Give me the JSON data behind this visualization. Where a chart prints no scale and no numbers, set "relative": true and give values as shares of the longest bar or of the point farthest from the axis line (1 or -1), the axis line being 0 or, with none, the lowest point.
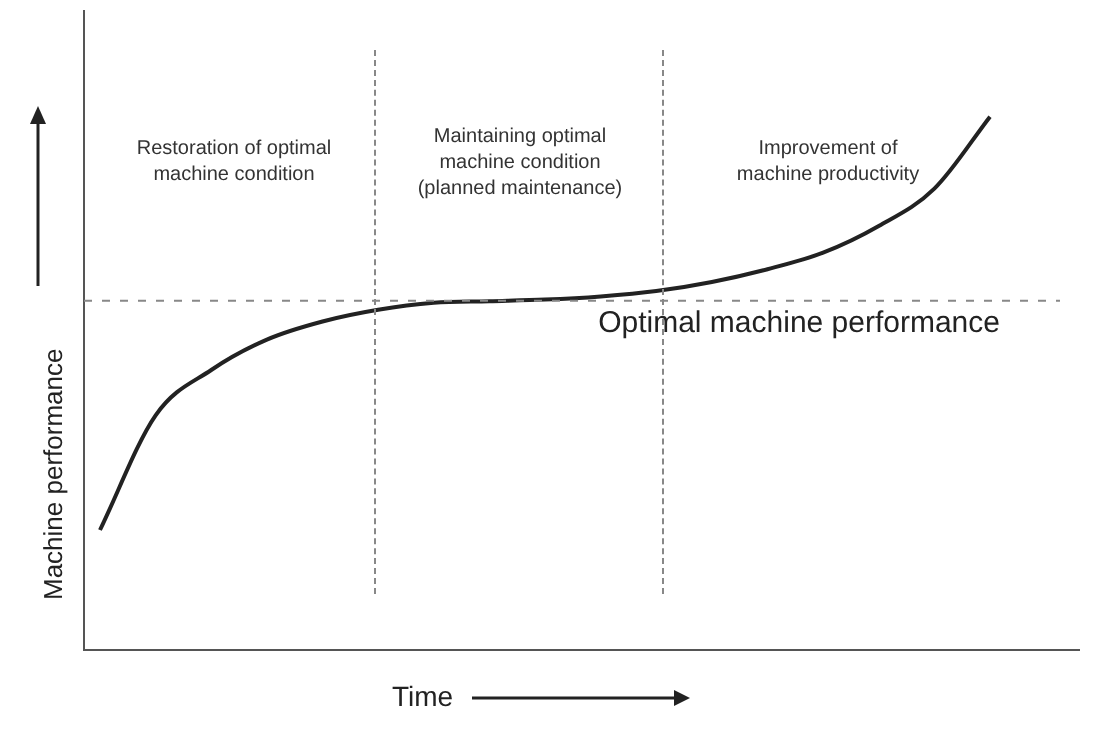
{
  "chart_data": {
    "type": "line",
    "relative": true,
    "xlabel": "Time",
    "ylabel": "Machine performance",
    "categories": [
      null,
      null,
      null,
      null,
      null,
      null,
      null,
      null,
      null,
      null,
      null,
      null,
      null,
      null,
      null,
      null,
      null
    ],
    "legend": false,
    "marker": "none",
    "line_style": "solid",
    "series": [
      {
        "color": "#222222",
        "values": [
          0.225,
          0.44,
          0.525,
          0.582,
          0.616,
          0.638,
          0.651,
          0.654,
          0.657,
          0.663,
          0.673,
          0.69,
          0.714,
          0.745,
          0.795,
          0.865,
          1.0
        ]
      }
    ],
    "ref_lines": [
      {
        "axis": "y",
        "value": 0.655,
        "label": "Optimal machine performance",
        "color": "#888888",
        "line_style": "dashed"
      }
    ],
    "annotations": [
      "Restoration of optimal\nmachine condition",
      "Maintaining optimal\nmachine condition\n(planned maintenance)",
      "Improvement of\nmachine productivity"
    ]
  }
}
